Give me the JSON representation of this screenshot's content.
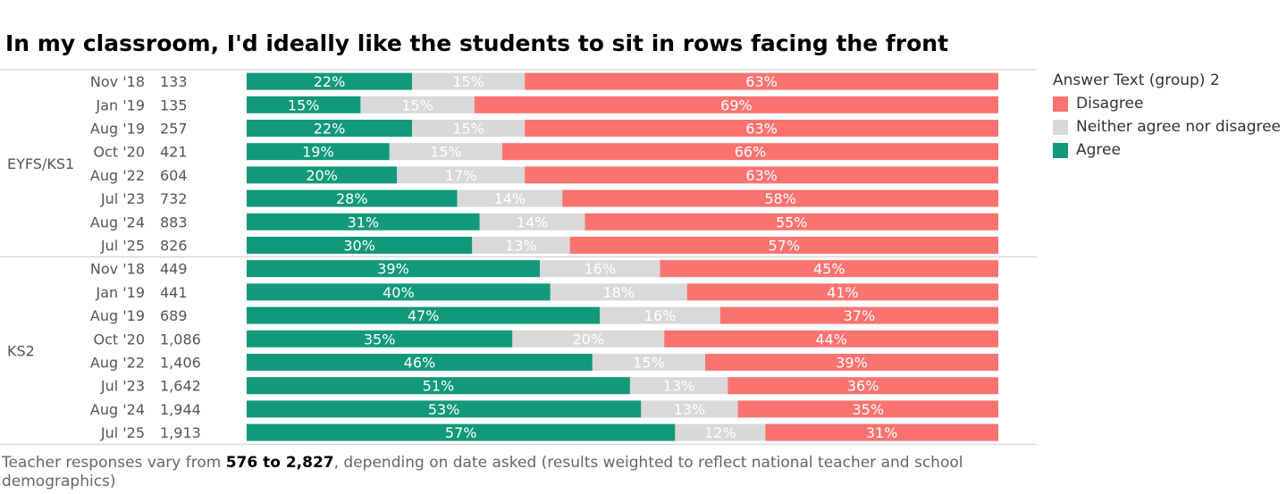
{
  "colors": {
    "agree": "#12997a",
    "neither": "#d9d9d9",
    "disagree": "#fb7370"
  },
  "legend": {
    "title": "Answer Text (group) 2",
    "items": [
      {
        "label": "Disagree",
        "color": "#fb7370"
      },
      {
        "label": "Neither agree nor disagree",
        "color": "#d9d9d9"
      },
      {
        "label": "Agree",
        "color": "#12997a"
      }
    ]
  },
  "footnote": {
    "prefix": "Teacher responses vary from ",
    "bold": "576 to 2,827",
    "suffix": ", depending on date asked (results weighted to reflect national teacher and school demographics)"
  },
  "chart_data": {
    "type": "bar",
    "orientation": "horizontal",
    "stacked": "100%",
    "title": "In my classroom, I'd ideally like the students to sit in rows facing the front",
    "series_order": [
      "Agree",
      "Neither agree nor disagree",
      "Disagree"
    ],
    "groups": [
      {
        "name": "EYFS/KS1",
        "rows": [
          {
            "date": "Nov '18",
            "n": "133",
            "agree": 22,
            "neither": 15,
            "disagree": 63
          },
          {
            "date": "Jan '19",
            "n": "135",
            "agree": 15,
            "neither": 15,
            "disagree": 69
          },
          {
            "date": "Aug '19",
            "n": "257",
            "agree": 22,
            "neither": 15,
            "disagree": 63
          },
          {
            "date": "Oct '20",
            "n": "421",
            "agree": 19,
            "neither": 15,
            "disagree": 66
          },
          {
            "date": "Aug '22",
            "n": "604",
            "agree": 20,
            "neither": 17,
            "disagree": 63
          },
          {
            "date": "Jul '23",
            "n": "732",
            "agree": 28,
            "neither": 14,
            "disagree": 58
          },
          {
            "date": "Aug '24",
            "n": "883",
            "agree": 31,
            "neither": 14,
            "disagree": 55
          },
          {
            "date": "Jul '25",
            "n": "826",
            "agree": 30,
            "neither": 13,
            "disagree": 57
          }
        ]
      },
      {
        "name": "KS2",
        "rows": [
          {
            "date": "Nov '18",
            "n": "449",
            "agree": 39,
            "neither": 16,
            "disagree": 45
          },
          {
            "date": "Jan '19",
            "n": "441",
            "agree": 40,
            "neither": 18,
            "disagree": 41
          },
          {
            "date": "Aug '19",
            "n": "689",
            "agree": 47,
            "neither": 16,
            "disagree": 37
          },
          {
            "date": "Oct '20",
            "n": "1,086",
            "agree": 35,
            "neither": 20,
            "disagree": 44
          },
          {
            "date": "Aug '22",
            "n": "1,406",
            "agree": 46,
            "neither": 15,
            "disagree": 39
          },
          {
            "date": "Jul '23",
            "n": "1,642",
            "agree": 51,
            "neither": 13,
            "disagree": 36
          },
          {
            "date": "Aug '24",
            "n": "1,944",
            "agree": 53,
            "neither": 13,
            "disagree": 35
          },
          {
            "date": "Jul '25",
            "n": "1,913",
            "agree": 57,
            "neither": 12,
            "disagree": 31
          }
        ]
      }
    ]
  }
}
